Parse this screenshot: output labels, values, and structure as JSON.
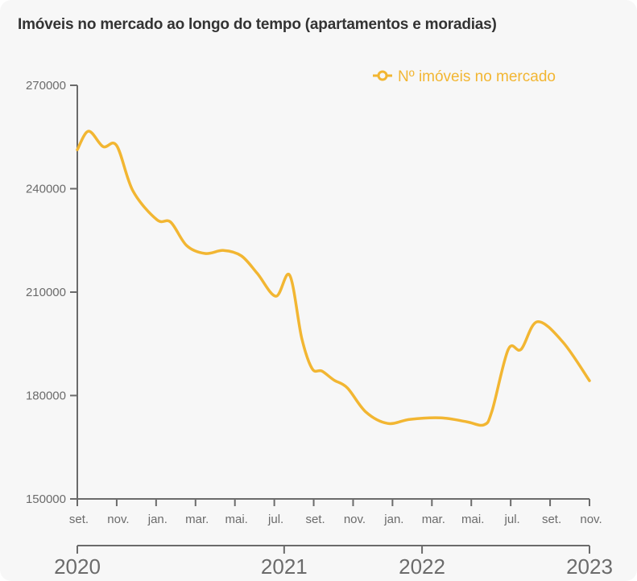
{
  "chart_data": {
    "type": "line",
    "title": "Imóveis no mercado ao longo do tempo (apartamentos e moradias)",
    "xlabel": "",
    "ylabel": "",
    "ylim": [
      150000,
      270000
    ],
    "y_ticks": [
      270000,
      240000,
      210000,
      180000,
      150000
    ],
    "y_tick_labels": [
      "270000",
      "240000",
      "210000",
      "180000",
      "150000"
    ],
    "x_range_months": [
      0,
      26
    ],
    "month_ticks": [
      {
        "m": 0,
        "label": "set."
      },
      {
        "m": 2,
        "label": "nov."
      },
      {
        "m": 4,
        "label": "jan."
      },
      {
        "m": 6,
        "label": "mar."
      },
      {
        "m": 8,
        "label": "mai."
      },
      {
        "m": 10,
        "label": "jul."
      },
      {
        "m": 12,
        "label": "set."
      },
      {
        "m": 14,
        "label": "nov."
      },
      {
        "m": 16,
        "label": "jan."
      },
      {
        "m": 18,
        "label": "mar."
      },
      {
        "m": 20,
        "label": "mai."
      },
      {
        "m": 22,
        "label": "jul."
      },
      {
        "m": 24,
        "label": "set."
      },
      {
        "m": 26,
        "label": "nov."
      }
    ],
    "year_ticks": [
      {
        "m": 0,
        "label": "2020"
      },
      {
        "m": 10.5,
        "label": "2021"
      },
      {
        "m": 17.5,
        "label": "2022"
      },
      {
        "m": 26,
        "label": "2023"
      }
    ],
    "grid": false,
    "legend_position": "top-right",
    "series": [
      {
        "name": "Nº imóveis no mercado",
        "color": "#f2b632",
        "points": [
          {
            "m": 0.0,
            "v": 251300
          },
          {
            "m": 0.57,
            "v": 256700
          },
          {
            "m": 1.31,
            "v": 252200
          },
          {
            "m": 2.0,
            "v": 252500
          },
          {
            "m": 2.82,
            "v": 239400
          },
          {
            "m": 4.04,
            "v": 231000
          },
          {
            "m": 4.74,
            "v": 230300
          },
          {
            "m": 5.55,
            "v": 223500
          },
          {
            "m": 6.49,
            "v": 221200
          },
          {
            "m": 7.43,
            "v": 222100
          },
          {
            "m": 8.33,
            "v": 220500
          },
          {
            "m": 9.14,
            "v": 215400
          },
          {
            "m": 10.08,
            "v": 208800
          },
          {
            "m": 10.78,
            "v": 214900
          },
          {
            "m": 11.39,
            "v": 196700
          },
          {
            "m": 11.92,
            "v": 187800
          },
          {
            "m": 12.41,
            "v": 187100
          },
          {
            "m": 13.02,
            "v": 184500
          },
          {
            "m": 13.71,
            "v": 182200
          },
          {
            "m": 14.65,
            "v": 175200
          },
          {
            "m": 15.76,
            "v": 171900
          },
          {
            "m": 16.9,
            "v": 173100
          },
          {
            "m": 18.45,
            "v": 173500
          },
          {
            "m": 19.76,
            "v": 172400
          },
          {
            "m": 20.65,
            "v": 171500
          },
          {
            "m": 21.06,
            "v": 175700
          },
          {
            "m": 21.88,
            "v": 193400
          },
          {
            "m": 22.53,
            "v": 193400
          },
          {
            "m": 23.35,
            "v": 201400
          },
          {
            "m": 24.65,
            "v": 195500
          },
          {
            "m": 26.0,
            "v": 184300
          }
        ]
      }
    ]
  }
}
